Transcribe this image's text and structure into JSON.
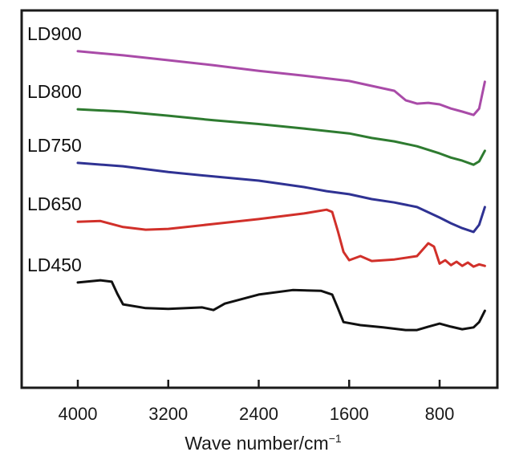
{
  "chart_data": {
    "type": "line",
    "title": "",
    "xlabel": "Wave number/cm",
    "xlabel_superscript": "−1",
    "ylabel": "",
    "x_reversed": true,
    "xlim": [
      4250,
      0
    ],
    "ylim": [
      0,
      100
    ],
    "y_units": "arbitrary (offset transmittance)",
    "grid": false,
    "legend": "inline labels at left of each curve",
    "x_ticks": [
      4000,
      3200,
      2400,
      1600,
      800
    ],
    "x_tick_labels": [
      "4000",
      "3200",
      "2400",
      "1600",
      "800"
    ],
    "series": [
      {
        "name": "LD900",
        "color": "#a94ba8",
        "x": [
          4000,
          3600,
          3200,
          2800,
          2400,
          2000,
          1600,
          1400,
          1200,
          1100,
          1000,
          900,
          800,
          700,
          600,
          500,
          450,
          400
        ],
        "y": [
          89.2,
          88.1,
          86.8,
          85.5,
          84.0,
          82.7,
          81.3,
          80.0,
          78.7,
          76.2,
          75.3,
          75.5,
          75.1,
          74.0,
          73.2,
          72.3,
          74.0,
          81.1
        ]
      },
      {
        "name": "LD800",
        "color": "#2e7b30",
        "x": [
          4000,
          3600,
          3200,
          2800,
          2400,
          2000,
          1600,
          1400,
          1200,
          1000,
          800,
          700,
          600,
          500,
          450,
          400
        ],
        "y": [
          73.8,
          73.2,
          72.1,
          70.9,
          69.9,
          68.7,
          67.4,
          66.2,
          65.3,
          64.0,
          62.1,
          61.0,
          60.2,
          59.1,
          60.0,
          62.8
        ]
      },
      {
        "name": "LD750",
        "color": "#2f3293",
        "x": [
          4000,
          3600,
          3200,
          2800,
          2400,
          2000,
          1800,
          1600,
          1400,
          1200,
          1000,
          800,
          700,
          600,
          500,
          450,
          400
        ],
        "y": [
          59.6,
          58.7,
          57.2,
          56.0,
          54.9,
          53.2,
          52.1,
          51.3,
          50.0,
          49.1,
          47.9,
          45.1,
          43.6,
          42.3,
          41.3,
          43.2,
          47.9
        ]
      },
      {
        "name": "LD650",
        "color": "#d1302a",
        "x": [
          4000,
          3800,
          3600,
          3400,
          3200,
          2800,
          2400,
          2000,
          1800,
          1750,
          1700,
          1650,
          1600,
          1500,
          1400,
          1200,
          1000,
          900,
          850,
          800,
          750,
          700,
          650,
          600,
          550,
          500,
          450,
          400
        ],
        "y": [
          44.0,
          44.2,
          42.6,
          41.9,
          42.1,
          43.4,
          44.7,
          46.2,
          47.2,
          46.6,
          41.5,
          36.0,
          33.8,
          34.9,
          33.6,
          34.0,
          34.9,
          38.3,
          37.4,
          32.9,
          33.8,
          32.5,
          33.4,
          32.3,
          33.2,
          32.1,
          32.7,
          32.3
        ]
      },
      {
        "name": "LD450",
        "color": "#111111",
        "x": [
          4000,
          3800,
          3700,
          3650,
          3600,
          3400,
          3200,
          2900,
          2800,
          2700,
          2400,
          2100,
          1850,
          1750,
          1700,
          1650,
          1500,
          1300,
          1100,
          1000,
          900,
          800,
          700,
          600,
          500,
          450,
          400
        ],
        "y": [
          27.9,
          28.5,
          28.1,
          24.9,
          22.1,
          21.1,
          20.9,
          21.3,
          20.6,
          22.3,
          24.7,
          25.9,
          25.7,
          24.7,
          21.1,
          17.4,
          16.6,
          16.0,
          15.3,
          15.3,
          16.2,
          17.0,
          16.2,
          15.5,
          16.0,
          17.4,
          20.4
        ]
      }
    ]
  }
}
